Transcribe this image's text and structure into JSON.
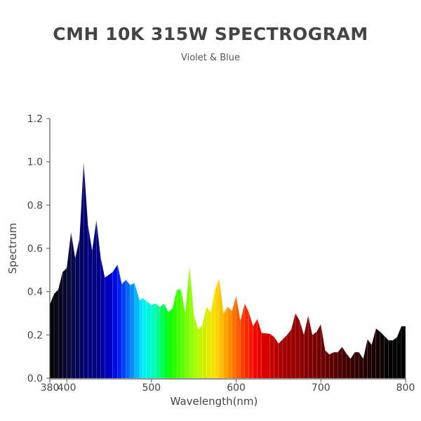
{
  "chart_data": {
    "type": "area",
    "title": "CMH 10K 315W SPECTROGRAM",
    "subtitle": "Violet & Blue",
    "xlabel": "Wavelength(nm)",
    "ylabel": "Spectrum",
    "xlim": [
      380,
      800
    ],
    "ylim": [
      0,
      1.2
    ],
    "xticks": [
      "380",
      "400",
      "500",
      "600",
      "700",
      "800"
    ],
    "yticks": [
      "0.0",
      "0.2",
      "0.4",
      "0.6",
      "0.8",
      "1.0",
      "1.2"
    ],
    "grid": false,
    "fill": "wavelength-colored spectrum",
    "x": [
      380,
      385,
      390,
      395,
      400,
      405,
      410,
      415,
      420,
      425,
      430,
      435,
      440,
      445,
      454,
      460,
      465,
      470,
      475,
      480,
      486,
      490,
      494,
      500,
      505,
      510,
      515,
      520,
      525,
      530,
      535,
      540,
      545,
      550,
      555,
      560,
      565,
      570,
      575,
      580,
      585,
      590,
      595,
      600,
      605,
      610,
      615,
      620,
      625,
      630,
      640,
      645,
      650,
      655,
      660,
      665,
      670,
      675,
      680,
      685,
      690,
      695,
      700,
      705,
      710,
      715,
      720,
      725,
      730,
      735,
      740,
      745,
      750,
      755,
      760,
      765,
      770,
      775,
      780,
      785,
      790,
      795,
      800
    ],
    "values": [
      0.34,
      0.39,
      0.41,
      0.49,
      0.51,
      0.675,
      0.555,
      0.645,
      1.0,
      0.71,
      0.59,
      0.73,
      0.56,
      0.465,
      0.49,
      0.525,
      0.435,
      0.455,
      0.43,
      0.44,
      0.36,
      0.37,
      0.355,
      0.34,
      0.345,
      0.33,
      0.345,
      0.305,
      0.325,
      0.41,
      0.41,
      0.3,
      0.52,
      0.295,
      0.225,
      0.245,
      0.33,
      0.305,
      0.41,
      0.46,
      0.3,
      0.33,
      0.31,
      0.38,
      0.265,
      0.345,
      0.305,
      0.24,
      0.275,
      0.21,
      0.205,
      0.19,
      0.16,
      0.18,
      0.2,
      0.225,
      0.3,
      0.265,
      0.2,
      0.29,
      0.2,
      0.215,
      0.25,
      0.13,
      0.11,
      0.12,
      0.12,
      0.145,
      0.115,
      0.09,
      0.12,
      0.12,
      0.09,
      0.18,
      0.155,
      0.23,
      0.215,
      0.195,
      0.175,
      0.175,
      0.19,
      0.24,
      0.24
    ],
    "color_stops": [
      [
        380,
        "#000000"
      ],
      [
        400,
        "#0a0a30"
      ],
      [
        420,
        "#000070"
      ],
      [
        440,
        "#00008f"
      ],
      [
        455,
        "#0000e0"
      ],
      [
        465,
        "#0030ff"
      ],
      [
        480,
        "#00a0ff"
      ],
      [
        490,
        "#00f0ff"
      ],
      [
        505,
        "#00ffb0"
      ],
      [
        520,
        "#00ff00"
      ],
      [
        550,
        "#a0ff00"
      ],
      [
        575,
        "#ffe000"
      ],
      [
        590,
        "#ff9a00"
      ],
      [
        610,
        "#ff3000"
      ],
      [
        625,
        "#f00000"
      ],
      [
        650,
        "#b00000"
      ],
      [
        700,
        "#700000"
      ],
      [
        750,
        "#250000"
      ],
      [
        780,
        "#050000"
      ],
      [
        800,
        "#000000"
      ]
    ]
  }
}
